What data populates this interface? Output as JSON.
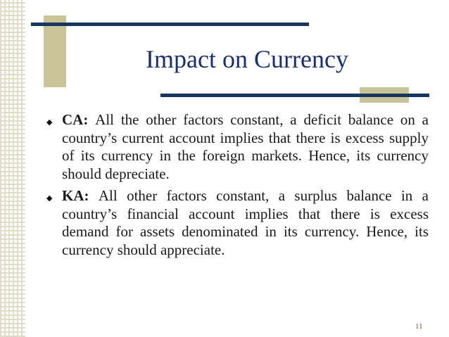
{
  "slide": {
    "title": "Impact on Currency",
    "bullets": [
      {
        "term": "CA:",
        "text": "All the other factors constant, a deficit balance on a country’s current account implies that there is excess supply of its currency in the foreign markets. Hence, its currency should depreciate."
      },
      {
        "term": "KA:",
        "text": "All other factors constant, a surplus balance in a country’s financial account implies that there is excess demand for assets denominated in its currency. Hence, its currency should appreciate."
      }
    ],
    "page_number": "11"
  },
  "icons": {
    "bullet": "diamond-bullet-icon"
  },
  "colors": {
    "title": "#1b2f6a",
    "rule": "#17375e",
    "accent": "#c9c39a",
    "page_number": "#8a4d2a"
  }
}
